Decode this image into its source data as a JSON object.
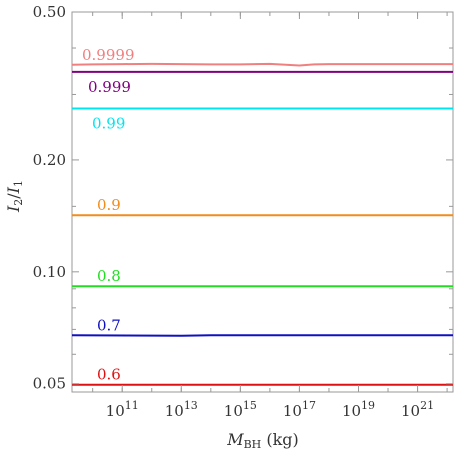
{
  "chart_data": {
    "type": "line",
    "xlabel_main": "M",
    "xlabel_sub": "BH",
    "xlabel_unit": " (kg)",
    "ylabel_main_1": "I",
    "ylabel_sub_1": "2",
    "ylabel_slash": "/",
    "ylabel_main_2": "I",
    "ylabel_sub_2": "1",
    "x_scale": "log",
    "y_scale": "log",
    "xlim_exp": [
      9.3,
      22.2
    ],
    "ylim": [
      0.0475,
      0.5
    ],
    "x_ticks": [
      {
        "exp": 11,
        "base": "10",
        "sup": "11"
      },
      {
        "exp": 13,
        "base": "10",
        "sup": "13"
      },
      {
        "exp": 15,
        "base": "10",
        "sup": "15"
      },
      {
        "exp": 17,
        "base": "10",
        "sup": "17"
      },
      {
        "exp": 19,
        "base": "10",
        "sup": "19"
      },
      {
        "exp": 21,
        "base": "10",
        "sup": "21"
      }
    ],
    "y_ticks": [
      {
        "value": 0.05,
        "label": "0.05"
      },
      {
        "value": 0.1,
        "label": "0.10"
      },
      {
        "value": 0.2,
        "label": "0.20"
      },
      {
        "value": 0.5,
        "label": "0.50"
      }
    ],
    "series": [
      {
        "name": "0.9999",
        "color": "#f08080",
        "x_exp": [
          9.3,
          10,
          11,
          12,
          13,
          14,
          15,
          16,
          17,
          17.5,
          18,
          19,
          20,
          21,
          22.2
        ],
        "y": [
          0.3605,
          0.3615,
          0.362,
          0.3625,
          0.362,
          0.3615,
          0.3615,
          0.3625,
          0.359,
          0.3615,
          0.362,
          0.362,
          0.362,
          0.362,
          0.362
        ]
      },
      {
        "name": "0.999",
        "color": "#800080",
        "x_exp": [
          9.3,
          22.2
        ],
        "y": [
          0.345,
          0.345
        ]
      },
      {
        "name": "0.99",
        "color": "#00e5ee",
        "x_exp": [
          9.3,
          22.2
        ],
        "y": [
          0.275,
          0.275
        ]
      },
      {
        "name": "0.9",
        "color": "#f28c1a",
        "x_exp": [
          9.3,
          22.2
        ],
        "y": [
          0.142,
          0.142
        ]
      },
      {
        "name": "0.8",
        "color": "#22dd22",
        "x_exp": [
          9.3,
          22.2
        ],
        "y": [
          0.0915,
          0.0915
        ]
      },
      {
        "name": "0.7",
        "color": "#1010c0",
        "x_exp": [
          9.3,
          13,
          14,
          22.2
        ],
        "y": [
          0.0675,
          0.0673,
          0.0675,
          0.0675
        ]
      },
      {
        "name": "0.6",
        "color": "#dd1111",
        "x_exp": [
          9.3,
          22.2
        ],
        "y": [
          0.0497,
          0.0497
        ]
      }
    ],
    "grid": false,
    "legend": "inline labels above lines"
  }
}
